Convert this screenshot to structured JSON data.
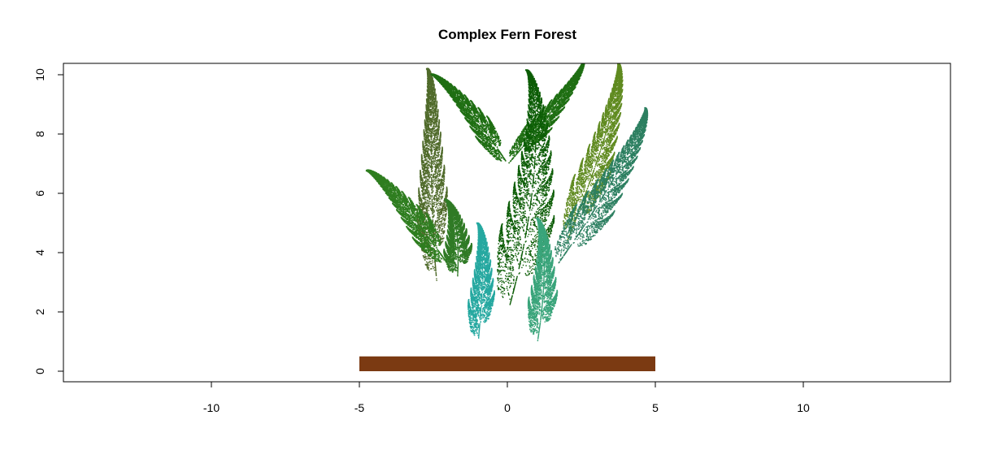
{
  "chart_data": {
    "type": "scatter",
    "title": "Complex Fern Forest",
    "xlabel": "",
    "ylabel": "",
    "xlim": [
      -15,
      15
    ],
    "ylim": [
      -0.37,
      10.4
    ],
    "x_ticks": [
      -10,
      -5,
      0,
      5,
      10
    ],
    "y_ticks": [
      0,
      2,
      4,
      6,
      8,
      10
    ],
    "x_tick_labels": [
      "-10",
      "-5",
      "0",
      "5",
      "10"
    ],
    "y_tick_labels": [
      "0",
      "2",
      "4",
      "6",
      "8",
      "10"
    ],
    "ground": {
      "x0": -5,
      "x1": 5,
      "y0": 0,
      "y1": 0.5,
      "color": "#7B3A12"
    },
    "ferns": [
      {
        "color": "#4F6A2A",
        "base": [
          -2.4,
          3.0
        ],
        "tip": [
          -3.1,
          10.2
        ],
        "width": 0.6,
        "curl": -1.3
      },
      {
        "color": "#2E7D1F",
        "base": [
          -2.0,
          3.6
        ],
        "tip": [
          -4.5,
          7.0
        ],
        "width": 0.5,
        "curl": -0.3
      },
      {
        "color": "#2F7A25",
        "base": [
          -1.7,
          3.2
        ],
        "tip": [
          -1.6,
          5.8
        ],
        "width": 0.55,
        "curl": 0.0
      },
      {
        "color": "#1E6E12",
        "base": [
          0.0,
          7.0
        ],
        "tip": [
          -2.2,
          10.3
        ],
        "width": 0.42,
        "curl": 0.2
      },
      {
        "color": "#1E6E12",
        "base": [
          0.0,
          7.0
        ],
        "tip": [
          2.8,
          10.3
        ],
        "width": 0.42,
        "curl": -0.2
      },
      {
        "color": "#0B5C05",
        "base": [
          0.0,
          2.0
        ],
        "tip": [
          2.1,
          9.8
        ],
        "width": 1.0,
        "curl": 0.7
      },
      {
        "color": "#5F8A1F",
        "base": [
          2.0,
          4.4
        ],
        "tip": [
          4.3,
          10.2
        ],
        "width": 0.65,
        "curl": 0.0
      },
      {
        "color": "#2C7F60",
        "base": [
          1.6,
          3.5
        ],
        "tip": [
          5.1,
          8.6
        ],
        "width": 0.7,
        "curl": -0.2
      },
      {
        "color": "#39A47A",
        "base": [
          1.0,
          1.0
        ],
        "tip": [
          1.6,
          5.1
        ],
        "width": 0.55,
        "curl": 0.25
      },
      {
        "color": "#25A8A0",
        "base": [
          -1.0,
          1.0
        ],
        "tip": [
          -0.7,
          5.0
        ],
        "width": 0.5,
        "curl": -0.35
      }
    ]
  }
}
